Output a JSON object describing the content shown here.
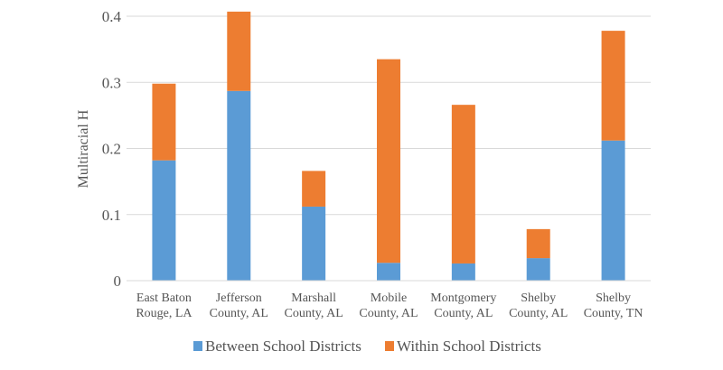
{
  "chart_data": {
    "type": "bar",
    "stacked": true,
    "title": "",
    "xlabel": "",
    "ylabel": "Multiracial H",
    "ylim": [
      0,
      0.4
    ],
    "yticks": [
      "0",
      "0.1",
      "0.2",
      "0.3",
      "0.4"
    ],
    "categories": [
      [
        "East Baton",
        "Rouge, LA"
      ],
      [
        "Jefferson",
        "County, AL"
      ],
      [
        "Marshall",
        "County, AL"
      ],
      [
        "Mobile",
        "County, AL"
      ],
      [
        "Montgomery",
        "County, AL"
      ],
      [
        "Shelby",
        "County, AL"
      ],
      [
        "Shelby",
        "County, TN"
      ]
    ],
    "series": [
      {
        "name": "Between School Districts",
        "color": "#5b9bd5",
        "values": [
          0.182,
          0.287,
          0.112,
          0.027,
          0.026,
          0.034,
          0.212
        ]
      },
      {
        "name": "Within School Districts",
        "color": "#ed7d31",
        "values": [
          0.116,
          0.12,
          0.054,
          0.308,
          0.24,
          0.044,
          0.166
        ]
      }
    ],
    "grid": true,
    "legend": "bottom"
  }
}
